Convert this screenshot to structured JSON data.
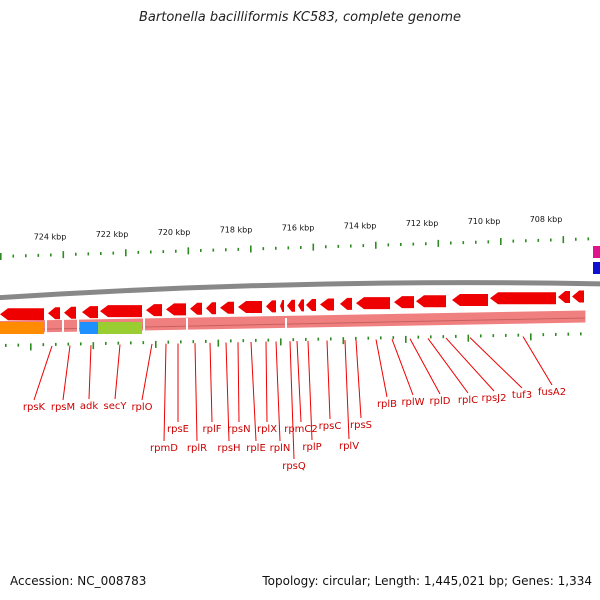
{
  "title": "Bartonella bacilliformis KC583, complete genome",
  "footer": {
    "accession": "Accession: NC_008783",
    "stats": "Topology: circular; Length: 1,445,021 bp; Genes: 1,334"
  },
  "colors": {
    "gene_forward": "#ee0000",
    "gene_band": "#f08080",
    "backbone": "#888888",
    "tick": "#2e8b22",
    "label": "#cc0000",
    "leader": "#ee0000"
  },
  "scale_labels": [
    "724 kbp",
    "722 kbp",
    "720 kbp",
    "718 kbp",
    "716 kbp",
    "714 kbp",
    "712 kbp",
    "710 kbp",
    "708 kbp"
  ],
  "genes": [
    "rpsK",
    "rpsM",
    "adk",
    "secY",
    "rplO",
    "rpmD",
    "rpsE",
    "rplR",
    "rplF",
    "rpsH",
    "rpsN",
    "rplE",
    "rplX",
    "rplN",
    "rpsQ",
    "rpmC2",
    "rplP",
    "rpsC",
    "rplV",
    "rpsS",
    "rplB",
    "rplW",
    "rplD",
    "rplC",
    "rpsJ2",
    "tuf3",
    "fusA2"
  ]
}
